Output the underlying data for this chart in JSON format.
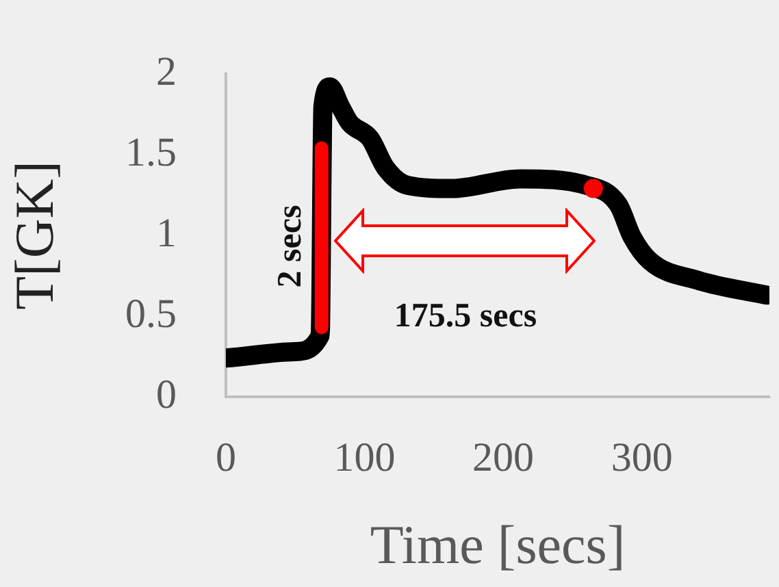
{
  "chart_data": {
    "type": "line",
    "xlabel": "Time [secs]",
    "ylabel": "T[GK]",
    "xlim": [
      0,
      392
    ],
    "xticks": [
      0,
      100,
      200,
      300
    ],
    "ylim": [
      0,
      2
    ],
    "yticks": [
      0,
      0.5,
      1,
      1.5,
      2
    ],
    "grid": false,
    "legend": false,
    "series": [
      {
        "color": "#000000",
        "x": [
          0,
          50,
          68,
          70,
          75,
          82.5,
          89,
          104,
          115,
          131,
          163,
          212,
          260,
          283,
          293,
          306,
          341,
          390
        ],
        "values": [
          0.24,
          0.28,
          0.38,
          1.8,
          1.92,
          1.8,
          1.7,
          1.6,
          1.42,
          1.31,
          1.29,
          1.35,
          1.31,
          1.19,
          0.99,
          0.84,
          0.72,
          0.63
        ]
      },
      {
        "color": "#ff0000",
        "x": [
          69,
          69
        ],
        "values": [
          0.43,
          1.54
        ]
      },
      {
        "type": "scatter",
        "marker": "circle",
        "color": "#ff0000",
        "x": [
          265
        ],
        "values": [
          1.29
        ]
      }
    ],
    "annotations": [
      "2 secs",
      "175.5 secs"
    ]
  }
}
